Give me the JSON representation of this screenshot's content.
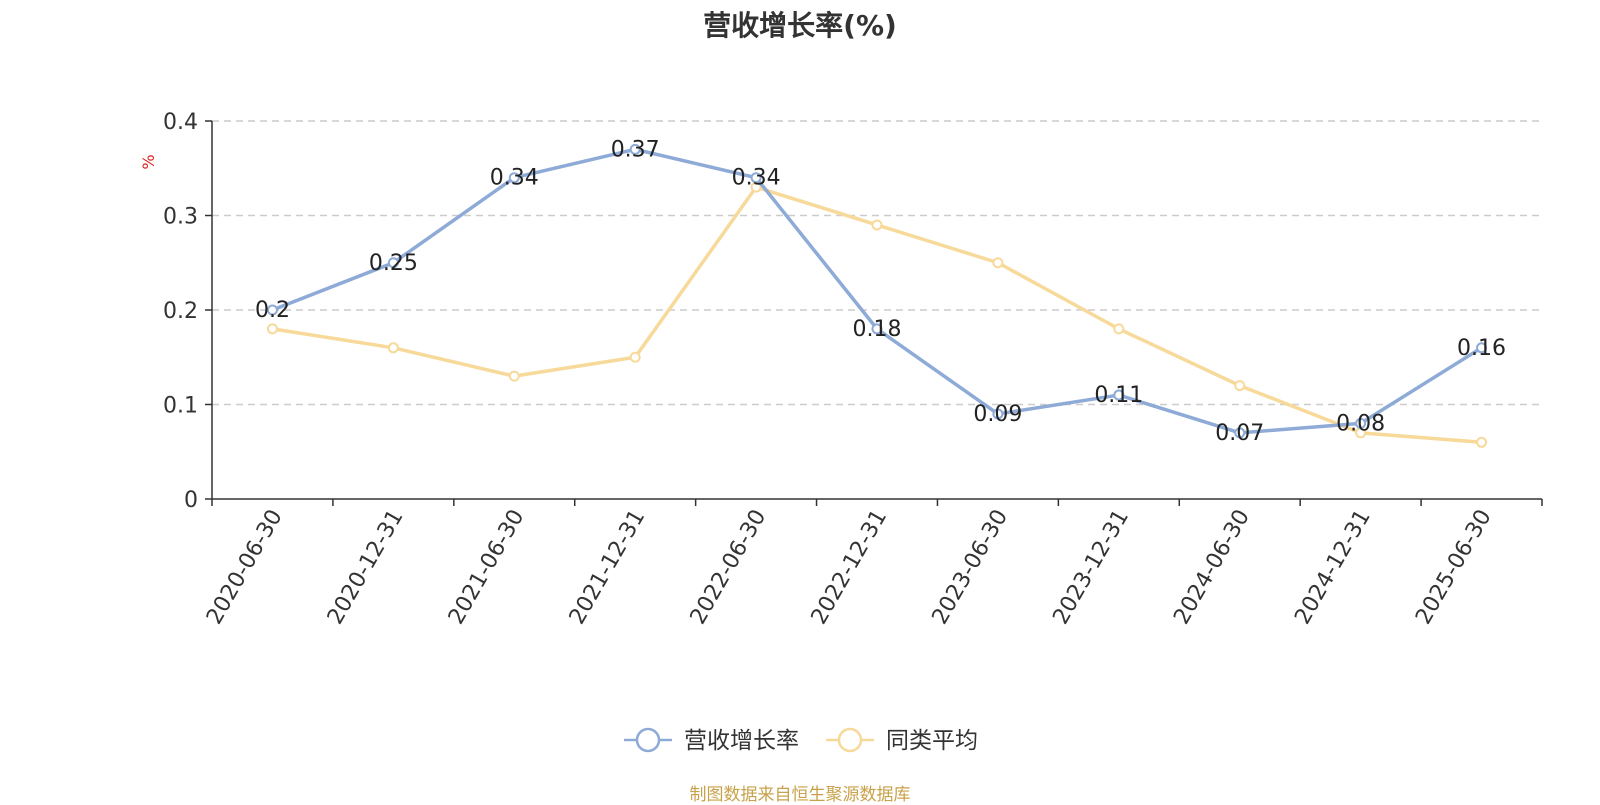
{
  "chart_data": {
    "type": "line",
    "title": "营收增长率(%)",
    "ylabel": "%",
    "xlabel": "",
    "x": [
      "2020-06-30",
      "2020-12-31",
      "2021-06-30",
      "2021-12-31",
      "2022-06-30",
      "2022-12-31",
      "2023-06-30",
      "2023-12-31",
      "2024-06-30",
      "2024-12-31",
      "2025-06-30"
    ],
    "y_ticks": [
      "0",
      "0.1",
      "0.2",
      "0.3",
      "0.4"
    ],
    "ylim": [
      0,
      0.4
    ],
    "grid": "horizontal-dashed",
    "legend_position": "bottom-center",
    "series": [
      {
        "name": "营收增长率",
        "color": "#8eaad6",
        "values": [
          0.2,
          0.25,
          0.34,
          0.37,
          0.34,
          0.18,
          0.09,
          0.11,
          0.07,
          0.08,
          0.16
        ],
        "labels": [
          "0.2",
          "0.25",
          "0.34",
          "0.37",
          "0.34",
          "0.18",
          "0.09",
          "0.11",
          "0.07",
          "0.08",
          "0.16"
        ]
      },
      {
        "name": "同类平均",
        "color": "#f7d99a",
        "values": [
          0.18,
          0.16,
          0.13,
          0.15,
          0.33,
          0.29,
          0.25,
          0.18,
          0.12,
          0.07,
          0.06
        ]
      }
    ]
  },
  "footer": {
    "source": "制图数据来自恒生聚源数据库"
  }
}
